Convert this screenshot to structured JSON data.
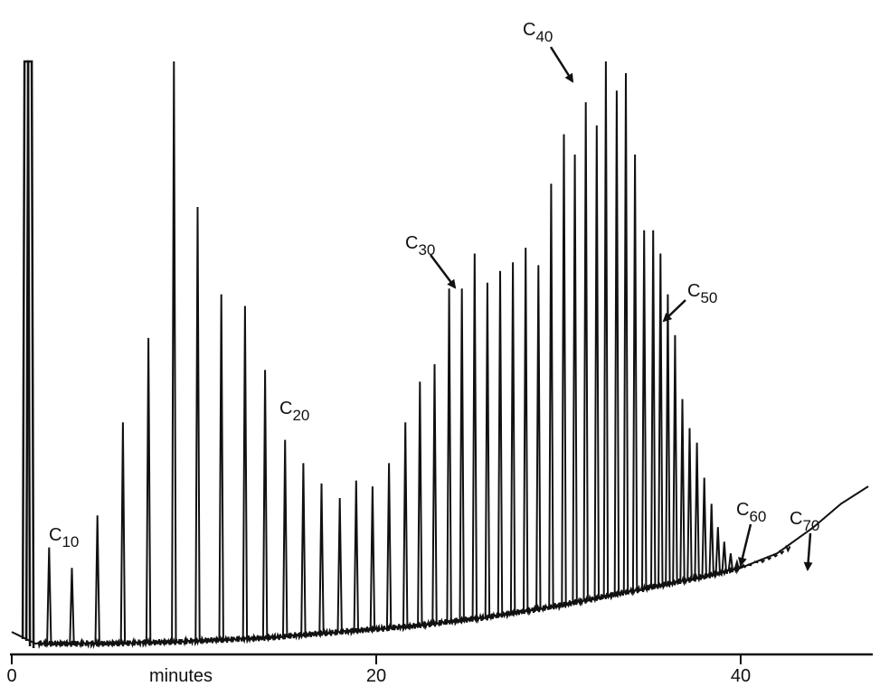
{
  "chart_data": {
    "type": "line",
    "xlabel": "minutes",
    "xlim": [
      0,
      47
    ],
    "ylim": [
      0,
      100
    ],
    "x_ticks": [
      {
        "value": 0,
        "label": "0"
      },
      {
        "value": 20,
        "label": "20"
      },
      {
        "value": 40,
        "label": "40"
      }
    ],
    "grid": false,
    "legend": "none",
    "solvent_peaks": [
      {
        "x": 0.8,
        "y": 100
      },
      {
        "x": 1.0,
        "y": 100
      }
    ],
    "baseline": [
      [
        0,
        2
      ],
      [
        1.3,
        0
      ],
      [
        5,
        0
      ],
      [
        9,
        0.3
      ],
      [
        14,
        1
      ],
      [
        18,
        2
      ],
      [
        22,
        3
      ],
      [
        26,
        4.5
      ],
      [
        30,
        6.5
      ],
      [
        34,
        9
      ],
      [
        38,
        11.5
      ],
      [
        40,
        13
      ],
      [
        42,
        15.5
      ],
      [
        44,
        20
      ],
      [
        45.5,
        24
      ],
      [
        47,
        27
      ]
    ],
    "peaks": [
      {
        "x": 2.05,
        "y": 16.5
      },
      {
        "x": 3.3,
        "y": 13
      },
      {
        "x": 4.7,
        "y": 22
      },
      {
        "x": 6.1,
        "y": 38
      },
      {
        "x": 7.5,
        "y": 52.5
      },
      {
        "x": 8.9,
        "y": 100
      },
      {
        "x": 10.2,
        "y": 75
      },
      {
        "x": 11.5,
        "y": 60
      },
      {
        "x": 12.8,
        "y": 58
      },
      {
        "x": 13.9,
        "y": 47
      },
      {
        "x": 15.0,
        "y": 35
      },
      {
        "x": 16.0,
        "y": 31
      },
      {
        "x": 17.0,
        "y": 27.5
      },
      {
        "x": 18.0,
        "y": 25
      },
      {
        "x": 18.9,
        "y": 28
      },
      {
        "x": 19.8,
        "y": 27
      },
      {
        "x": 20.7,
        "y": 31
      },
      {
        "x": 21.6,
        "y": 38
      },
      {
        "x": 22.4,
        "y": 45
      },
      {
        "x": 23.2,
        "y": 48
      },
      {
        "x": 24.0,
        "y": 61
      },
      {
        "x": 24.7,
        "y": 61
      },
      {
        "x": 25.4,
        "y": 67
      },
      {
        "x": 26.1,
        "y": 62
      },
      {
        "x": 26.8,
        "y": 64
      },
      {
        "x": 27.5,
        "y": 65.5
      },
      {
        "x": 28.2,
        "y": 68
      },
      {
        "x": 28.9,
        "y": 65
      },
      {
        "x": 29.6,
        "y": 79
      },
      {
        "x": 30.3,
        "y": 87.5
      },
      {
        "x": 30.9,
        "y": 84
      },
      {
        "x": 31.5,
        "y": 93
      },
      {
        "x": 32.1,
        "y": 89
      },
      {
        "x": 32.6,
        "y": 100
      },
      {
        "x": 33.2,
        "y": 95
      },
      {
        "x": 33.7,
        "y": 98
      },
      {
        "x": 34.2,
        "y": 84
      },
      {
        "x": 34.7,
        "y": 71
      },
      {
        "x": 35.2,
        "y": 71
      },
      {
        "x": 35.6,
        "y": 67
      },
      {
        "x": 36.0,
        "y": 60
      },
      {
        "x": 36.4,
        "y": 53
      },
      {
        "x": 36.8,
        "y": 42
      },
      {
        "x": 37.2,
        "y": 37
      },
      {
        "x": 37.6,
        "y": 34.5
      },
      {
        "x": 38.0,
        "y": 28.5
      },
      {
        "x": 38.4,
        "y": 24
      },
      {
        "x": 38.75,
        "y": 20
      },
      {
        "x": 39.1,
        "y": 17.5
      },
      {
        "x": 39.45,
        "y": 15.5
      },
      {
        "x": 39.8,
        "y": 14
      },
      {
        "x": 40.15,
        "y": 13.5
      },
      {
        "x": 40.5,
        "y": 13.5
      },
      {
        "x": 40.85,
        "y": 14
      },
      {
        "x": 41.2,
        "y": 14
      },
      {
        "x": 41.55,
        "y": 14.5
      },
      {
        "x": 41.9,
        "y": 15
      },
      {
        "x": 42.25,
        "y": 15.5
      },
      {
        "x": 42.6,
        "y": 16
      }
    ],
    "annotations": [
      {
        "base": "C",
        "sub": "10",
        "x": 2.05,
        "arrow": false
      },
      {
        "base": "C",
        "sub": "20",
        "x": 15.0,
        "arrow": false
      },
      {
        "base": "C",
        "sub": "30",
        "x": 24.0,
        "arrow": true
      },
      {
        "base": "C",
        "sub": "40",
        "x": 30.3,
        "arrow": true
      },
      {
        "base": "C",
        "sub": "50",
        "x": 35.6,
        "arrow": true
      },
      {
        "base": "C",
        "sub": "60",
        "x": 39.8,
        "arrow": true
      },
      {
        "base": "C",
        "sub": "70",
        "x": 43.5,
        "arrow": true
      }
    ],
    "line_color": "#111111"
  }
}
